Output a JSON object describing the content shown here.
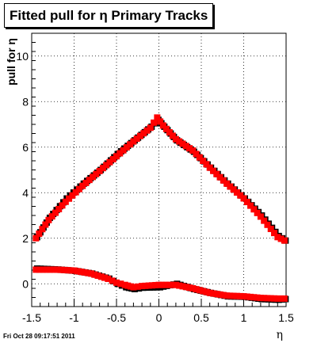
{
  "chart_data": {
    "type": "scatter",
    "title": "Fitted pull for η  Primary Tracks",
    "xlabel": "η",
    "ylabel": "pull for η",
    "xlim": [
      -1.5,
      1.5
    ],
    "ylim": [
      -1.0,
      11.0
    ],
    "x_ticks": [
      "-1.5",
      "-1",
      "-0.5",
      "0",
      "0.5",
      "1",
      "1.5"
    ],
    "y_ticks": [
      "0",
      "2",
      "4",
      "6",
      "8",
      "10"
    ],
    "marker": "square",
    "series": [
      {
        "color": "#000000",
        "x": [
          -1.45,
          -1.3,
          -1.1,
          -0.9,
          -0.7,
          -0.5,
          -0.3,
          -0.1,
          -0.02,
          0.05,
          0.2,
          0.4,
          0.6,
          0.8,
          1.0,
          1.2,
          1.4,
          1.48
        ],
        "y": [
          2.1,
          2.95,
          3.8,
          4.45,
          5.05,
          5.75,
          6.35,
          6.95,
          7.25,
          6.95,
          6.35,
          5.85,
          5.15,
          4.45,
          3.8,
          3.05,
          2.15,
          1.95
        ]
      },
      {
        "color": "#000000",
        "x": [
          -1.45,
          -1.2,
          -1.0,
          -0.8,
          -0.6,
          -0.5,
          -0.4,
          -0.3,
          -0.2,
          0.0,
          0.2,
          0.4,
          0.6,
          0.8,
          1.0,
          1.2,
          1.4,
          1.48
        ],
        "y": [
          0.72,
          0.68,
          0.62,
          0.5,
          0.28,
          0.05,
          -0.1,
          -0.18,
          -0.12,
          -0.1,
          0.05,
          -0.18,
          -0.35,
          -0.5,
          -0.52,
          -0.62,
          -0.65,
          -0.62
        ]
      },
      {
        "color": "#ff0000",
        "x": [
          -1.45,
          -1.3,
          -1.1,
          -0.9,
          -0.7,
          -0.5,
          -0.3,
          -0.1,
          -0.02,
          0.05,
          0.2,
          0.4,
          0.6,
          0.8,
          1.0,
          1.2,
          1.4,
          1.48
        ],
        "y": [
          2.0,
          2.8,
          3.6,
          4.3,
          4.95,
          5.6,
          6.25,
          6.85,
          7.3,
          6.95,
          6.35,
          5.85,
          5.1,
          4.4,
          3.75,
          2.95,
          2.05,
          1.9
        ]
      },
      {
        "color": "#ff0000",
        "x": [
          -1.45,
          -1.2,
          -1.0,
          -0.8,
          -0.6,
          -0.5,
          -0.4,
          -0.3,
          -0.2,
          0.0,
          0.2,
          0.4,
          0.6,
          0.8,
          1.0,
          1.2,
          1.4,
          1.48
        ],
        "y": [
          0.62,
          0.62,
          0.58,
          0.45,
          0.22,
          0.05,
          -0.05,
          -0.15,
          -0.1,
          -0.05,
          -0.05,
          -0.2,
          -0.4,
          -0.52,
          -0.55,
          -0.62,
          -0.65,
          -0.65
        ]
      }
    ]
  },
  "footer": "Fri Oct 28 09:17:51 2011"
}
